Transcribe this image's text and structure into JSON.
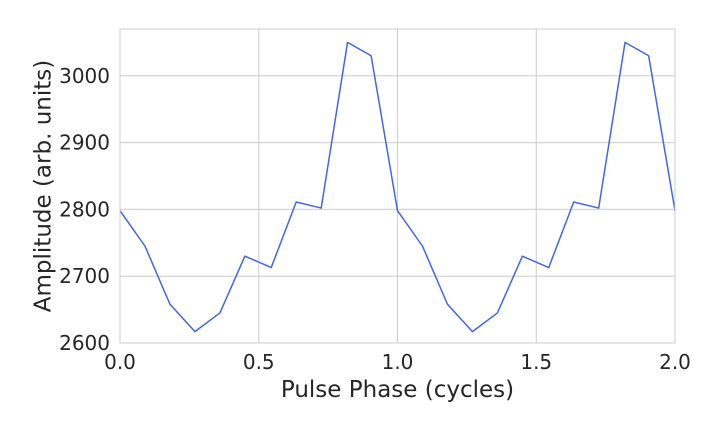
{
  "chart_data": {
    "type": "line",
    "xlabel": "Pulse Phase (cycles)",
    "ylabel": "Amplitude (arb. units)",
    "xlim": [
      0.0,
      2.0
    ],
    "ylim": [
      2600,
      3070
    ],
    "x_ticks": [
      0.0,
      0.5,
      1.0,
      1.5,
      2.0
    ],
    "x_tick_labels": [
      "0.0",
      "0.5",
      "1.0",
      "1.5",
      "2.0"
    ],
    "y_ticks": [
      2600,
      2700,
      2800,
      2900,
      3000
    ],
    "y_tick_labels": [
      "2600",
      "2700",
      "2800",
      "2900",
      "3000"
    ],
    "grid": true,
    "line_color": "#4466dd",
    "series": [
      {
        "x": [
          0.0,
          0.09,
          0.18,
          0.27,
          0.36,
          0.45,
          0.545,
          0.635,
          0.725,
          0.82,
          0.905,
          1.0,
          1.09,
          1.18,
          1.27,
          1.36,
          1.45,
          1.545,
          1.635,
          1.725,
          1.82,
          1.905,
          2.0
        ],
        "y": [
          2798,
          2745,
          2658,
          2617,
          2645,
          2730,
          2713,
          2811,
          2802,
          3050,
          3030,
          2798,
          2745,
          2658,
          2617,
          2645,
          2730,
          2713,
          2811,
          2802,
          3050,
          3030,
          2798
        ]
      }
    ]
  }
}
